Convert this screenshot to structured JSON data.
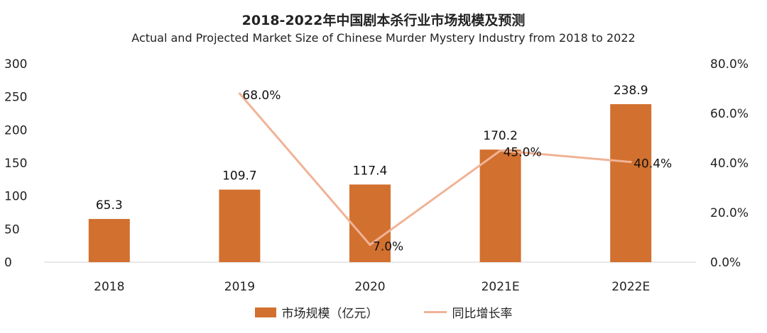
{
  "chart_data": {
    "type": "bar",
    "title": "2018-2022年中国剧本杀行业市场规模及预测",
    "subtitle": "Actual and Projected Market Size  of Chinese Murder Mystery Industry from 2018 to 2022",
    "categories": [
      "2018",
      "2019",
      "2020",
      "2021E",
      "2022E"
    ],
    "series": [
      {
        "name": "市场规模（亿元）",
        "type": "bar",
        "axis": "left",
        "values": [
          65.3,
          109.7,
          117.4,
          170.2,
          238.9
        ],
        "labels": [
          "65.3",
          "109.7",
          "117.4",
          "170.2",
          "238.9"
        ],
        "color": "#d2702f"
      },
      {
        "name": "同比增长率",
        "type": "line",
        "axis": "right",
        "values": [
          null,
          68.0,
          7.0,
          45.0,
          40.4
        ],
        "labels": [
          "",
          "68.0%",
          "7.0%",
          "45.0%",
          "40.4%"
        ],
        "color": "#f0b396"
      }
    ],
    "y_left": {
      "min": 0,
      "max": 300,
      "ticks": [
        "0",
        "50",
        "100",
        "150",
        "200",
        "250",
        "300"
      ]
    },
    "y_right": {
      "min": 0,
      "max": 80,
      "ticks": [
        "0.0%",
        "20.0%",
        "40.0%",
        "60.0%",
        "80.0%"
      ]
    },
    "legend_position": "bottom"
  }
}
